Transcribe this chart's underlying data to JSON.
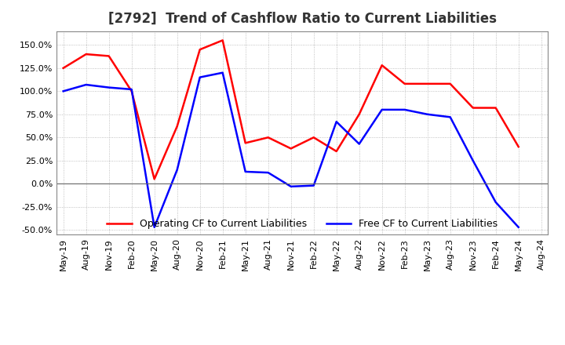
{
  "title": "[2792]  Trend of Cashflow Ratio to Current Liabilities",
  "x_labels": [
    "May-19",
    "Aug-19",
    "Nov-19",
    "Feb-20",
    "May-20",
    "Aug-20",
    "Nov-20",
    "Feb-21",
    "May-21",
    "Aug-21",
    "Nov-21",
    "Feb-22",
    "May-22",
    "Aug-22",
    "Nov-22",
    "Feb-23",
    "May-23",
    "Aug-23",
    "Nov-23",
    "Feb-24",
    "May-24",
    "Aug-24"
  ],
  "operating_cf": [
    1.25,
    1.4,
    1.38,
    1.0,
    0.05,
    0.62,
    1.45,
    1.55,
    0.44,
    0.5,
    0.38,
    0.5,
    0.35,
    0.75,
    1.28,
    1.08,
    1.08,
    1.08,
    0.82,
    0.82,
    0.4,
    null
  ],
  "free_cf": [
    1.0,
    1.07,
    1.04,
    1.02,
    -0.47,
    0.15,
    1.15,
    1.2,
    0.13,
    0.12,
    -0.03,
    -0.02,
    0.67,
    0.43,
    0.8,
    0.8,
    0.75,
    0.72,
    0.25,
    -0.2,
    -0.47,
    null
  ],
  "ylim": [
    -0.55,
    1.65
  ],
  "yticks": [
    -0.5,
    -0.25,
    0.0,
    0.25,
    0.5,
    0.75,
    1.0,
    1.25,
    1.5
  ],
  "operating_color": "#ff0000",
  "free_color": "#0000ff",
  "legend_labels": [
    "Operating CF to Current Liabilities",
    "Free CF to Current Liabilities"
  ],
  "background_color": "#ffffff",
  "grid_color": "#b0b0b0",
  "title_color": "#333333",
  "title_fontsize": 12,
  "tick_fontsize": 8,
  "legend_fontsize": 9
}
